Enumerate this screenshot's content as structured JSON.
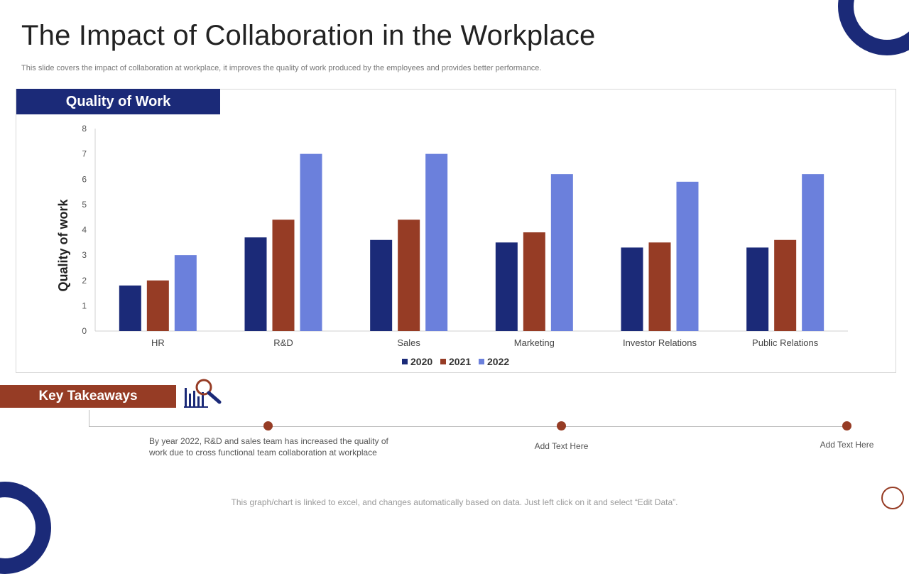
{
  "slide": {
    "title": "The Impact of Collaboration in the Workplace",
    "subtitle": "This slide covers the impact of collaboration at workplace, it improves the quality of work produced by the employees and provides better performance.",
    "chart_header": "Quality of Work",
    "takeaways_header": "Key Takeaways",
    "takeaways": [
      {
        "text": "By year 2022, R&D and sales team has increased the quality of work due to cross functional team collaboration at workplace"
      },
      {
        "text": "Add Text Here"
      },
      {
        "text": "Add Text Here"
      }
    ],
    "footer": "This graph/chart is linked to excel, and changes automatically based on data. Just left click on it and select “Edit Data”."
  },
  "colors": {
    "primary": "#1b2a78",
    "accent": "#963c25",
    "light": "#6b80dc"
  },
  "chart_data": {
    "type": "bar",
    "categories": [
      "HR",
      "R&D",
      "Sales",
      "Marketing",
      "Investor Relations",
      "Public Relations"
    ],
    "series": [
      {
        "name": "2020",
        "color": "#1b2a78",
        "values": [
          1.8,
          3.7,
          3.6,
          3.5,
          3.3,
          3.3
        ]
      },
      {
        "name": "2021",
        "color": "#963c25",
        "values": [
          2.0,
          4.4,
          4.4,
          3.9,
          3.5,
          3.6
        ]
      },
      {
        "name": "2022",
        "color": "#6b80dc",
        "values": [
          3.0,
          7.0,
          7.0,
          6.2,
          5.9,
          6.2
        ]
      }
    ],
    "ylabel": "Quality of work",
    "xlabel": "",
    "ylim": [
      0,
      8
    ],
    "yticks": [
      0,
      1,
      2,
      3,
      4,
      5,
      6,
      7,
      8
    ],
    "grid": false,
    "legend": "bottom"
  }
}
